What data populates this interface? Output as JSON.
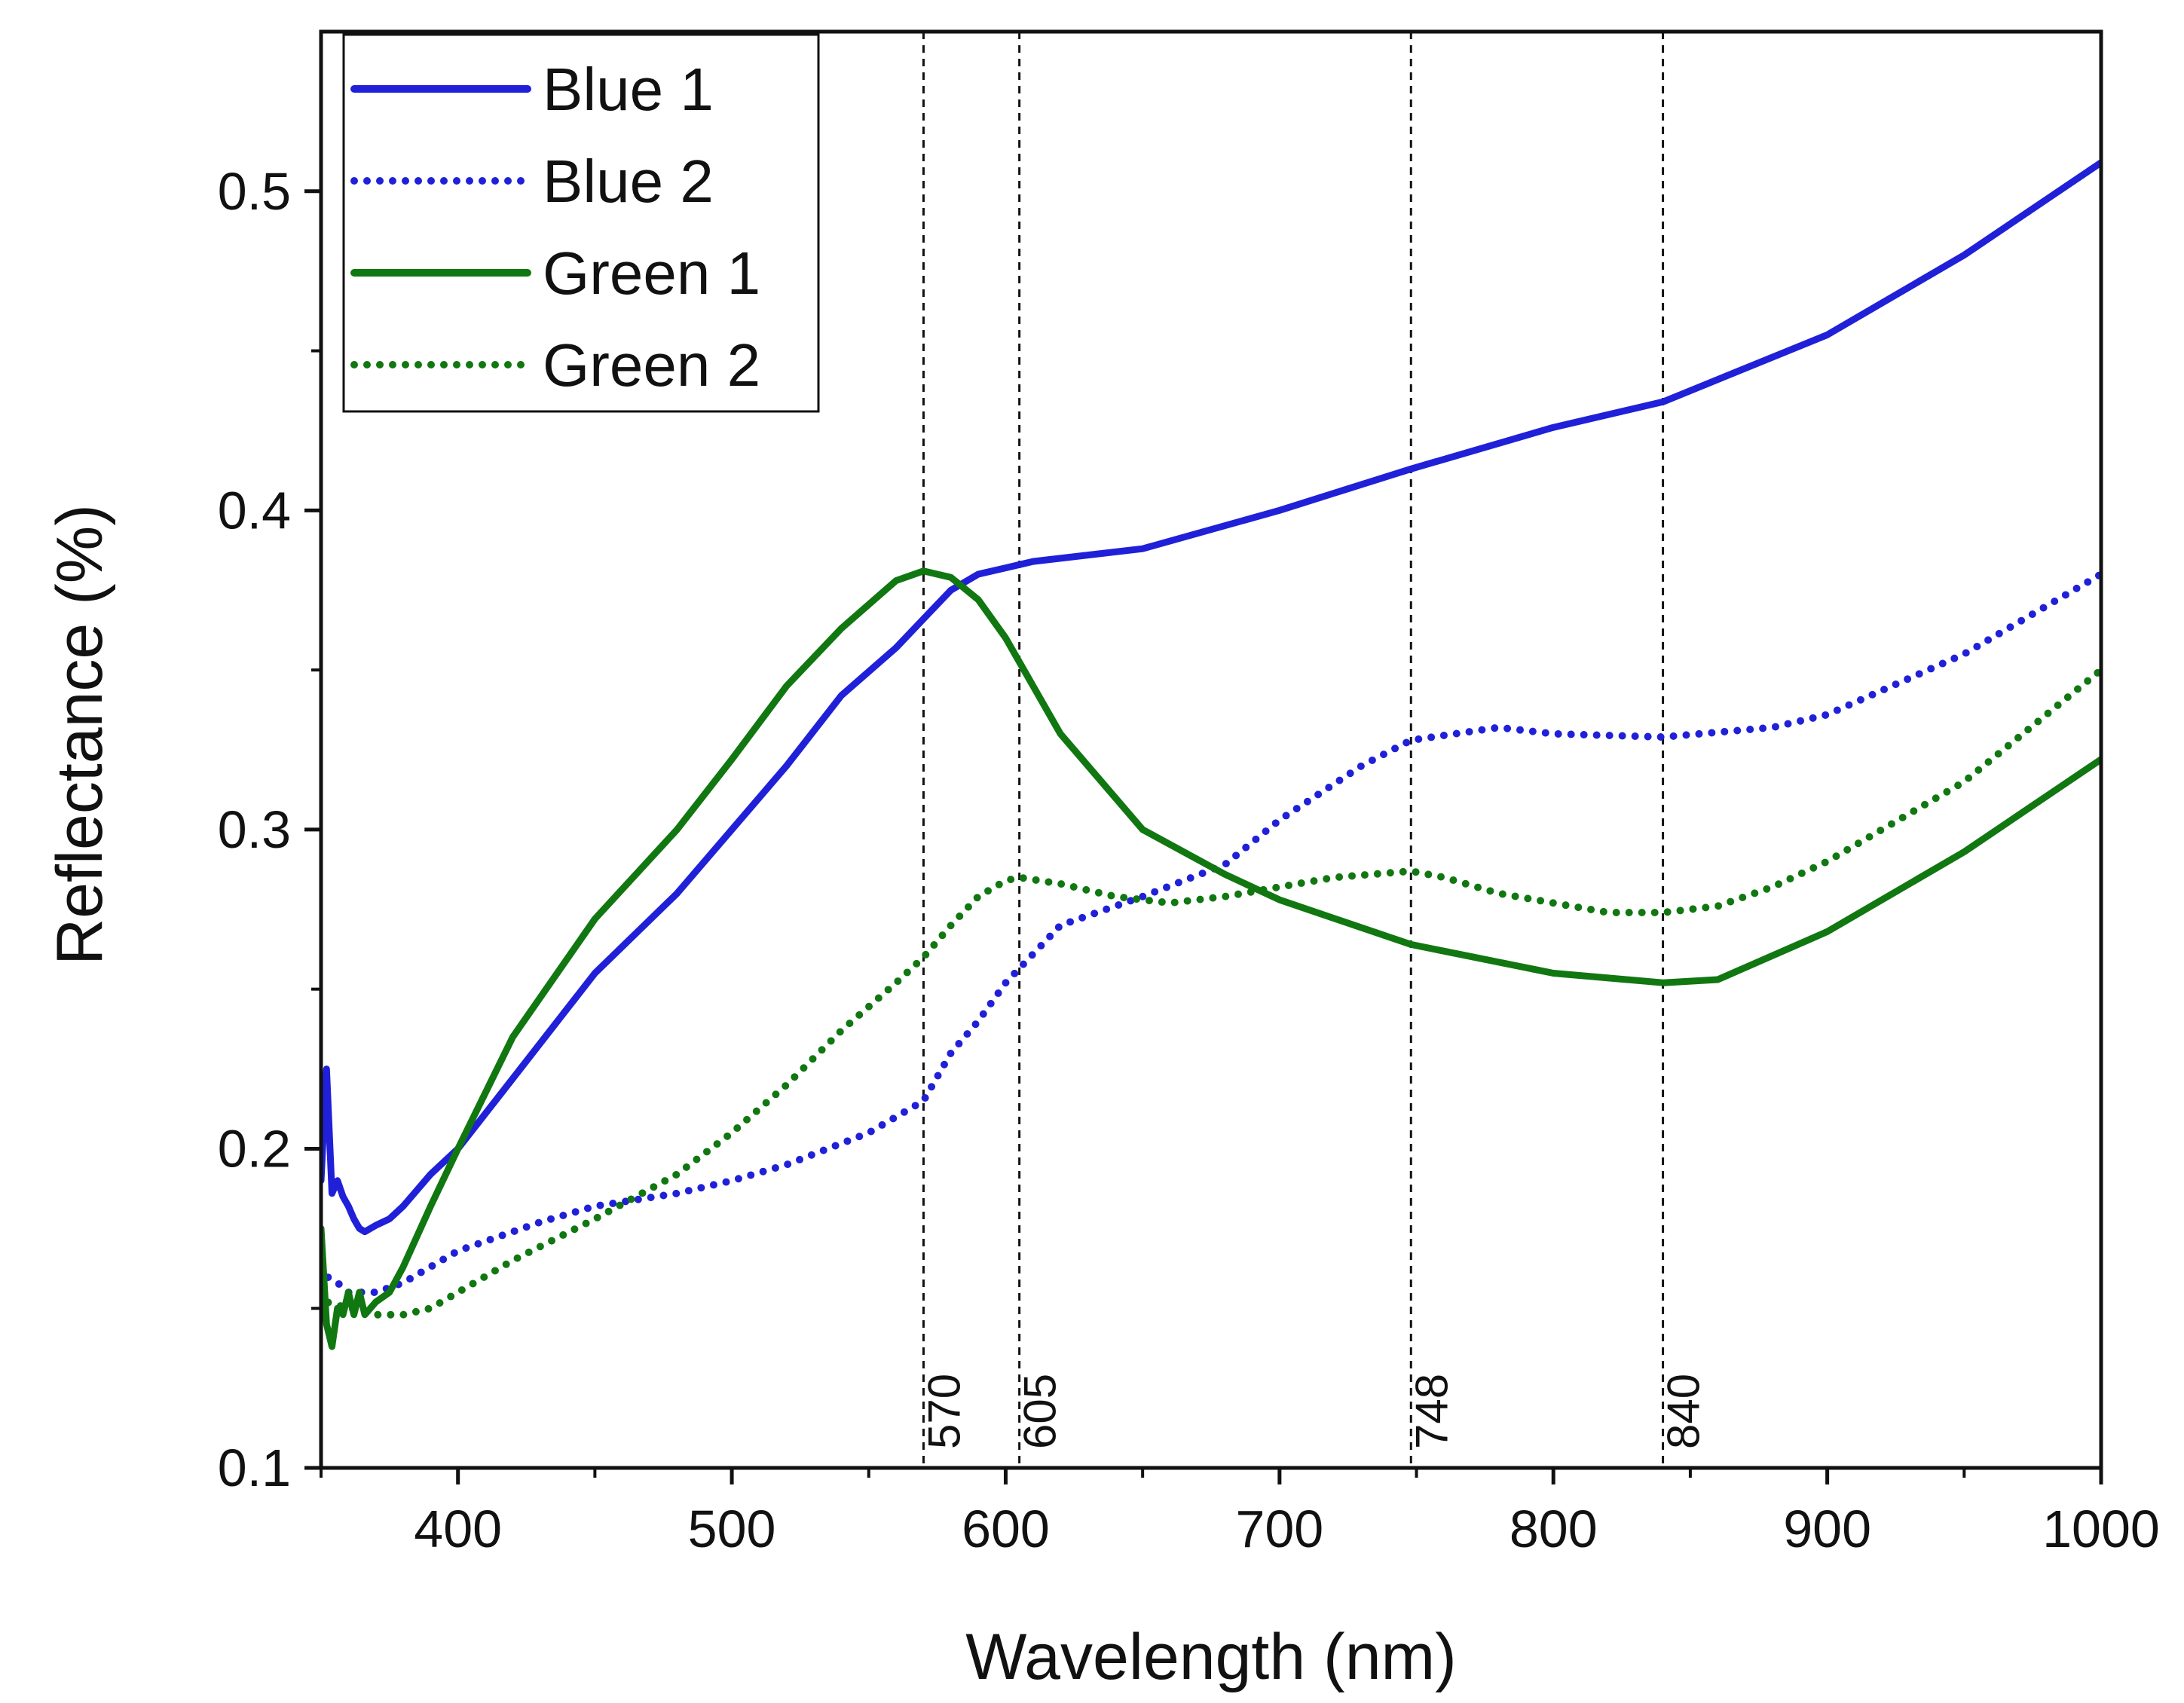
{
  "chart_data": {
    "type": "line",
    "title": "",
    "xlabel": "Wavelength (nm)",
    "ylabel": "Reflectance (%)",
    "xlim": [
      350,
      1000
    ],
    "ylim": [
      0.1,
      0.55
    ],
    "x_ticks": [
      400,
      500,
      600,
      700,
      800,
      900,
      1000
    ],
    "x_tick_labels": [
      "400",
      "500",
      "600",
      "700",
      "800",
      "900",
      "1000"
    ],
    "x_minor_step": 50,
    "y_ticks": [
      0.1,
      0.2,
      0.3,
      0.4,
      0.5
    ],
    "y_tick_labels": [
      "0.1",
      "0.2",
      "0.3",
      "0.4",
      "0.5"
    ],
    "y_minor_step": 0.05,
    "grid": false,
    "legend_position": "top-left",
    "reference_lines": [
      {
        "x": 570,
        "label": "570"
      },
      {
        "x": 605,
        "label": "605"
      },
      {
        "x": 748,
        "label": "748"
      },
      {
        "x": 840,
        "label": "840"
      }
    ],
    "series": [
      {
        "name": "Blue 1",
        "color": "#2020d8",
        "style": "solid",
        "x": [
          350,
          352,
          354,
          356,
          358,
          360,
          362,
          364,
          366,
          370,
          375,
          380,
          385,
          390,
          400,
          420,
          450,
          480,
          500,
          520,
          540,
          560,
          570,
          580,
          590,
          600,
          610,
          620,
          650,
          700,
          748,
          800,
          840,
          900,
          950,
          1000
        ],
        "y": [
          0.19,
          0.225,
          0.186,
          0.19,
          0.185,
          0.182,
          0.178,
          0.175,
          0.174,
          0.176,
          0.178,
          0.182,
          0.187,
          0.192,
          0.2,
          0.222,
          0.255,
          0.28,
          0.3,
          0.32,
          0.342,
          0.357,
          0.366,
          0.375,
          0.38,
          0.382,
          0.384,
          0.385,
          0.388,
          0.4,
          0.413,
          0.426,
          0.434,
          0.455,
          0.48,
          0.509
        ]
      },
      {
        "name": "Blue 2",
        "color": "#2020d8",
        "style": "dotted",
        "x": [
          350,
          352,
          356,
          360,
          370,
          380,
          400,
          430,
          450,
          480,
          500,
          520,
          550,
          570,
          580,
          590,
          600,
          620,
          650,
          680,
          700,
          730,
          748,
          780,
          800,
          840,
          880,
          900,
          950,
          1000
        ],
        "y": [
          0.163,
          0.16,
          0.158,
          0.155,
          0.155,
          0.158,
          0.168,
          0.177,
          0.182,
          0.186,
          0.19,
          0.195,
          0.205,
          0.215,
          0.23,
          0.24,
          0.252,
          0.27,
          0.279,
          0.289,
          0.303,
          0.32,
          0.328,
          0.332,
          0.33,
          0.329,
          0.332,
          0.336,
          0.355,
          0.38
        ]
      },
      {
        "name": "Green 1",
        "color": "#117711",
        "style": "solid",
        "x": [
          350,
          352,
          354,
          356,
          358,
          360,
          362,
          364,
          366,
          370,
          375,
          380,
          390,
          400,
          420,
          450,
          480,
          500,
          520,
          540,
          560,
          570,
          580,
          590,
          600,
          610,
          620,
          650,
          680,
          700,
          748,
          800,
          840,
          860,
          900,
          950,
          1000
        ],
        "y": [
          0.175,
          0.145,
          0.138,
          0.15,
          0.148,
          0.155,
          0.148,
          0.155,
          0.148,
          0.152,
          0.155,
          0.163,
          0.182,
          0.2,
          0.235,
          0.272,
          0.3,
          0.322,
          0.345,
          0.363,
          0.378,
          0.381,
          0.379,
          0.372,
          0.36,
          0.345,
          0.33,
          0.3,
          0.286,
          0.278,
          0.264,
          0.255,
          0.252,
          0.253,
          0.268,
          0.293,
          0.322
        ]
      },
      {
        "name": "Green 2",
        "color": "#117711",
        "style": "dotted",
        "x": [
          350,
          352,
          356,
          360,
          370,
          380,
          390,
          400,
          420,
          450,
          480,
          500,
          520,
          540,
          560,
          570,
          580,
          590,
          600,
          605,
          620,
          640,
          660,
          680,
          700,
          720,
          748,
          760,
          780,
          800,
          820,
          840,
          860,
          880,
          900,
          950,
          1000
        ],
        "y": [
          0.155,
          0.152,
          0.151,
          0.15,
          0.148,
          0.148,
          0.15,
          0.155,
          0.165,
          0.178,
          0.192,
          0.205,
          0.22,
          0.237,
          0.252,
          0.26,
          0.27,
          0.279,
          0.284,
          0.285,
          0.283,
          0.279,
          0.277,
          0.279,
          0.282,
          0.285,
          0.287,
          0.285,
          0.28,
          0.277,
          0.274,
          0.274,
          0.276,
          0.282,
          0.29,
          0.315,
          0.35
        ]
      }
    ]
  }
}
